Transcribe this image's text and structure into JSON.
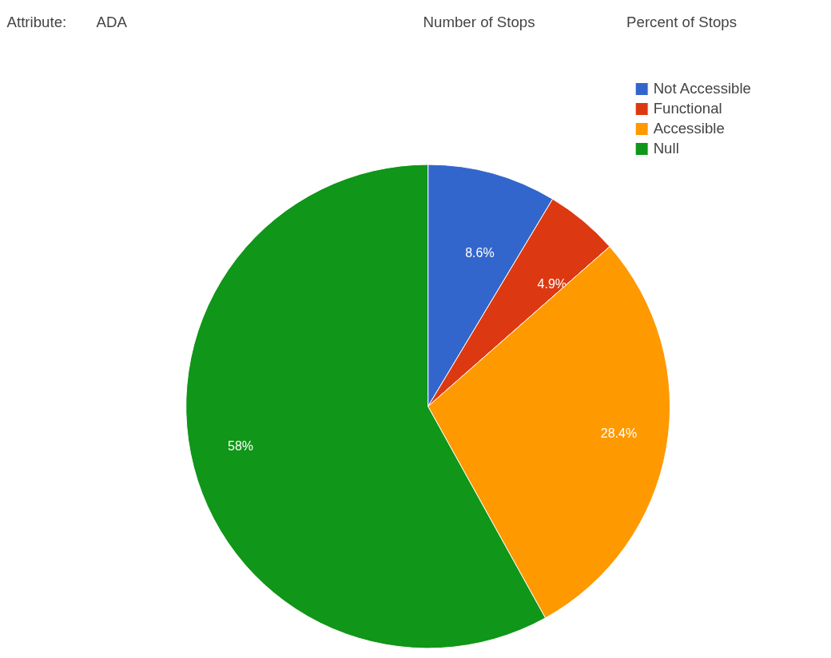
{
  "chart_data": {
    "type": "pie",
    "categories": [
      "Not Accessible",
      "Functional",
      "Accessible",
      "Null"
    ],
    "values": [
      8.6,
      4.9,
      28.4,
      58
    ],
    "colors": [
      "#3366cc",
      "#dc3912",
      "#ff9900",
      "#109618"
    ],
    "value_labels": [
      "8.6%",
      "4.9%",
      "28.4%",
      "58%"
    ],
    "legend": "top right",
    "annotations": [
      "Attribute:",
      "ADA",
      "Number of Stops",
      "Percent of Stops"
    ]
  }
}
